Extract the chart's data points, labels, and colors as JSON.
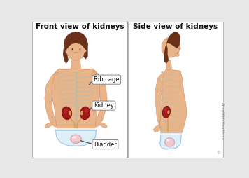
{
  "title_left": "Front view of kidneys",
  "title_right": "Side view of kidneys",
  "bg_color": "#e8e8e8",
  "skin_color": "#e8b48a",
  "skin_mid": "#d4956e",
  "skin_dark": "#c07850",
  "hair_color": "#6b3018",
  "rib_color": "#d8cbb8",
  "rib_stroke": "#c8b8a0",
  "kidney_dark": "#7a1010",
  "kidney_mid": "#a01818",
  "kidney_light": "#c83030",
  "kidney_hilum": "#d4a060",
  "bladder_color": "#f0c8d0",
  "bladder_stroke": "#d4a0a8",
  "ureter_color": "#d4a060",
  "label_bg": "#ffffff",
  "label_edge": "#888888",
  "label_fontsize": 6.0,
  "title_fontsize": 7.5,
  "watermark": "AboutKidsHealth.ca",
  "underwear_color": "#ddeef8",
  "underwear_stroke": "#a0c8e0",
  "line_color": "#444444",
  "spine_color": "#c8b898",
  "cheek_color": "#e8a090"
}
